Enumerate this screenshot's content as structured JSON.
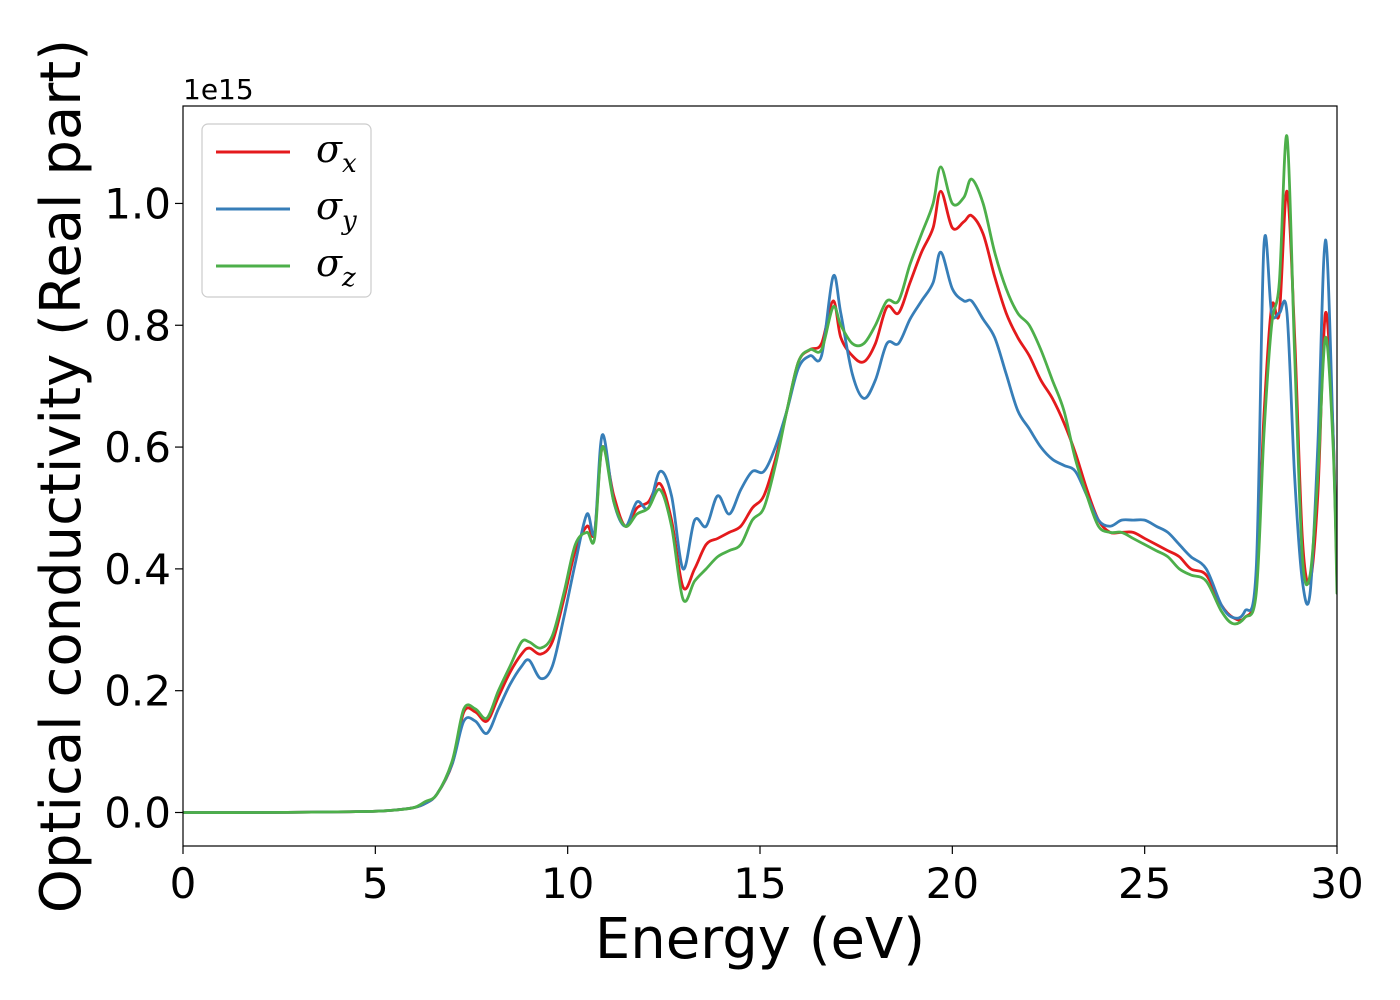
{
  "chart_data": {
    "type": "line",
    "xlabel": "Energy (eV)",
    "ylabel": "Optical conductivity (Real part)",
    "y_offset_label": "1e15",
    "xlim": [
      0,
      30
    ],
    "ylim": [
      -0.055,
      1.16
    ],
    "xticks": [
      0,
      5,
      10,
      15,
      20,
      25,
      30
    ],
    "xtick_labels": [
      "0",
      "5",
      "10",
      "15",
      "20",
      "25",
      "30"
    ],
    "yticks": [
      0.0,
      0.2,
      0.4,
      0.6,
      0.8,
      1.0
    ],
    "ytick_labels": [
      "0.0",
      "0.2",
      "0.4",
      "0.6",
      "0.8",
      "1.0"
    ],
    "grid": false,
    "legend_position": "top-left",
    "series": [
      {
        "name": "σ",
        "subscript": "x",
        "color": "#e41a1c",
        "x": [
          0,
          2,
          4,
          5,
          5.5,
          6,
          6.3,
          6.6,
          7.0,
          7.3,
          7.6,
          7.9,
          8.2,
          8.5,
          8.8,
          9.0,
          9.3,
          9.6,
          9.9,
          10.2,
          10.5,
          10.7,
          10.9,
          11.2,
          11.5,
          11.8,
          12.1,
          12.4,
          12.7,
          13.0,
          13.3,
          13.6,
          13.9,
          14.2,
          14.5,
          14.8,
          15.1,
          15.4,
          15.7,
          16.0,
          16.3,
          16.6,
          16.9,
          17.1,
          17.4,
          17.7,
          18.0,
          18.3,
          18.6,
          18.9,
          19.2,
          19.5,
          19.7,
          20.0,
          20.3,
          20.5,
          20.8,
          21.1,
          21.4,
          21.7,
          22.0,
          22.3,
          22.6,
          22.9,
          23.2,
          23.5,
          23.8,
          24.1,
          24.4,
          24.7,
          25.0,
          25.3,
          25.6,
          25.9,
          26.2,
          26.6,
          27.0,
          27.3,
          27.6,
          27.9,
          28.1,
          28.3,
          28.5,
          28.7,
          28.9,
          29.1,
          29.3,
          29.5,
          29.7,
          29.9,
          30.0
        ],
        "y": [
          0.0,
          0.0,
          0.001,
          0.002,
          0.004,
          0.008,
          0.015,
          0.03,
          0.08,
          0.165,
          0.165,
          0.15,
          0.19,
          0.23,
          0.26,
          0.27,
          0.26,
          0.28,
          0.35,
          0.43,
          0.47,
          0.46,
          0.6,
          0.52,
          0.47,
          0.5,
          0.51,
          0.54,
          0.48,
          0.37,
          0.4,
          0.44,
          0.45,
          0.46,
          0.47,
          0.5,
          0.52,
          0.58,
          0.66,
          0.74,
          0.76,
          0.77,
          0.84,
          0.78,
          0.75,
          0.74,
          0.77,
          0.83,
          0.82,
          0.87,
          0.92,
          0.96,
          1.02,
          0.96,
          0.97,
          0.98,
          0.95,
          0.88,
          0.82,
          0.78,
          0.75,
          0.71,
          0.68,
          0.64,
          0.59,
          0.53,
          0.48,
          0.46,
          0.46,
          0.46,
          0.45,
          0.44,
          0.43,
          0.42,
          0.4,
          0.39,
          0.34,
          0.32,
          0.32,
          0.37,
          0.65,
          0.83,
          0.82,
          1.02,
          0.78,
          0.45,
          0.38,
          0.52,
          0.82,
          0.62,
          0.38
        ]
      },
      {
        "name": "σ",
        "subscript": "y",
        "color": "#377eb8",
        "x": [
          0,
          2,
          4,
          5,
          5.5,
          6,
          6.3,
          6.6,
          7.0,
          7.3,
          7.6,
          7.9,
          8.2,
          8.5,
          8.8,
          9.0,
          9.3,
          9.6,
          9.9,
          10.2,
          10.5,
          10.7,
          10.9,
          11.2,
          11.5,
          11.8,
          12.1,
          12.4,
          12.7,
          13.0,
          13.3,
          13.6,
          13.9,
          14.2,
          14.5,
          14.8,
          15.1,
          15.4,
          15.7,
          16.0,
          16.3,
          16.6,
          16.9,
          17.1,
          17.4,
          17.7,
          18.0,
          18.3,
          18.6,
          18.9,
          19.2,
          19.5,
          19.7,
          20.0,
          20.3,
          20.5,
          20.8,
          21.1,
          21.4,
          21.7,
          22.0,
          22.3,
          22.6,
          22.9,
          23.2,
          23.5,
          23.8,
          24.1,
          24.4,
          24.7,
          25.0,
          25.3,
          25.6,
          25.9,
          26.2,
          26.6,
          27.0,
          27.3,
          27.6,
          27.9,
          28.1,
          28.3,
          28.5,
          28.7,
          28.9,
          29.1,
          29.3,
          29.5,
          29.7,
          29.9,
          30.0
        ],
        "y": [
          0.0,
          0.0,
          0.001,
          0.002,
          0.004,
          0.008,
          0.015,
          0.03,
          0.08,
          0.15,
          0.15,
          0.13,
          0.17,
          0.21,
          0.24,
          0.25,
          0.22,
          0.24,
          0.32,
          0.41,
          0.49,
          0.46,
          0.62,
          0.51,
          0.47,
          0.51,
          0.5,
          0.56,
          0.52,
          0.4,
          0.48,
          0.47,
          0.52,
          0.49,
          0.53,
          0.56,
          0.56,
          0.6,
          0.66,
          0.73,
          0.75,
          0.75,
          0.88,
          0.82,
          0.72,
          0.68,
          0.71,
          0.77,
          0.77,
          0.81,
          0.84,
          0.87,
          0.92,
          0.86,
          0.84,
          0.84,
          0.81,
          0.78,
          0.72,
          0.66,
          0.63,
          0.6,
          0.58,
          0.57,
          0.56,
          0.52,
          0.48,
          0.47,
          0.48,
          0.48,
          0.48,
          0.47,
          0.46,
          0.44,
          0.42,
          0.4,
          0.34,
          0.32,
          0.33,
          0.4,
          0.93,
          0.82,
          0.82,
          0.82,
          0.55,
          0.38,
          0.36,
          0.6,
          0.94,
          0.62,
          0.4
        ]
      },
      {
        "name": "σ",
        "subscript": "z",
        "color": "#4daf4a",
        "x": [
          0,
          2,
          4,
          5,
          5.5,
          6,
          6.3,
          6.6,
          7.0,
          7.3,
          7.6,
          7.9,
          8.2,
          8.5,
          8.8,
          9.0,
          9.3,
          9.6,
          9.9,
          10.2,
          10.5,
          10.7,
          10.9,
          11.2,
          11.5,
          11.8,
          12.1,
          12.4,
          12.7,
          13.0,
          13.3,
          13.6,
          13.9,
          14.2,
          14.5,
          14.8,
          15.1,
          15.4,
          15.7,
          16.0,
          16.3,
          16.6,
          16.9,
          17.1,
          17.4,
          17.7,
          18.0,
          18.3,
          18.6,
          18.9,
          19.2,
          19.5,
          19.7,
          20.0,
          20.3,
          20.5,
          20.8,
          21.1,
          21.4,
          21.7,
          22.0,
          22.3,
          22.6,
          22.9,
          23.2,
          23.5,
          23.8,
          24.1,
          24.4,
          24.7,
          25.0,
          25.3,
          25.6,
          25.9,
          26.2,
          26.6,
          27.0,
          27.3,
          27.6,
          27.9,
          28.1,
          28.3,
          28.5,
          28.7,
          28.9,
          29.1,
          29.3,
          29.5,
          29.7,
          29.9,
          30.0
        ],
        "y": [
          0.0,
          0.0,
          0.001,
          0.002,
          0.004,
          0.008,
          0.018,
          0.03,
          0.085,
          0.17,
          0.17,
          0.155,
          0.2,
          0.24,
          0.28,
          0.28,
          0.27,
          0.29,
          0.36,
          0.44,
          0.46,
          0.45,
          0.6,
          0.51,
          0.47,
          0.49,
          0.5,
          0.53,
          0.47,
          0.35,
          0.38,
          0.4,
          0.42,
          0.43,
          0.44,
          0.48,
          0.5,
          0.57,
          0.66,
          0.74,
          0.76,
          0.76,
          0.83,
          0.8,
          0.77,
          0.77,
          0.8,
          0.84,
          0.84,
          0.9,
          0.95,
          1.0,
          1.06,
          1.0,
          1.01,
          1.04,
          1.0,
          0.92,
          0.86,
          0.82,
          0.8,
          0.76,
          0.71,
          0.66,
          0.58,
          0.52,
          0.47,
          0.46,
          0.46,
          0.45,
          0.44,
          0.43,
          0.42,
          0.4,
          0.39,
          0.38,
          0.33,
          0.31,
          0.32,
          0.36,
          0.62,
          0.8,
          0.87,
          1.11,
          0.75,
          0.42,
          0.39,
          0.55,
          0.78,
          0.6,
          0.36
        ]
      }
    ]
  }
}
